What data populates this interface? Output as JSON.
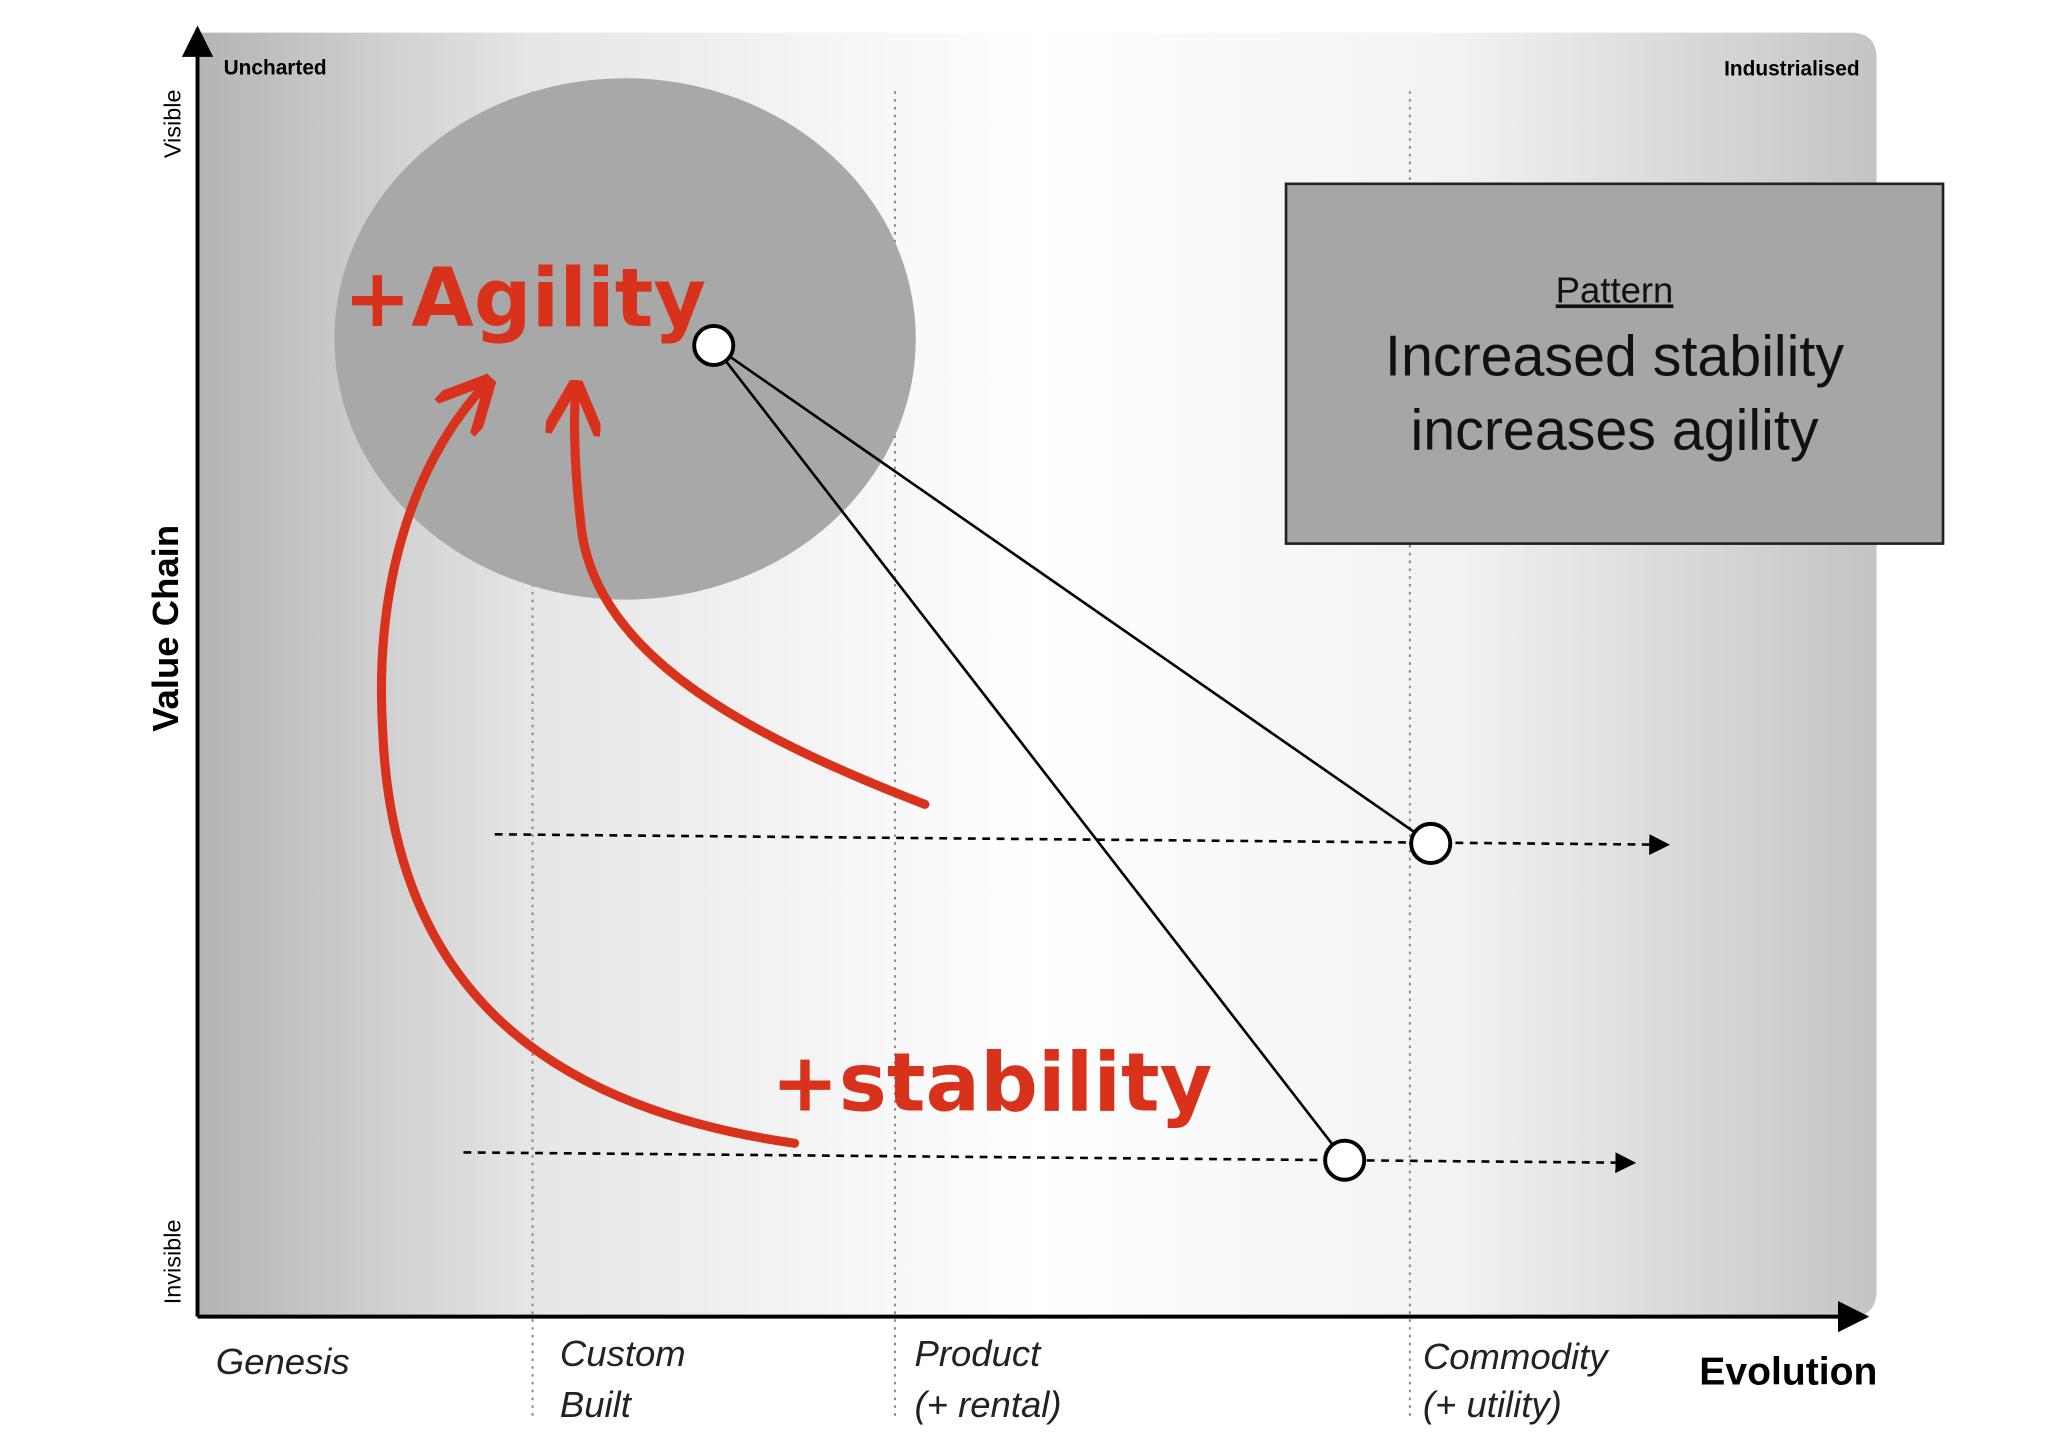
{
  "axes": {
    "y_label": "Value Chain",
    "y_top": "Visible",
    "y_bottom": "Invisible",
    "x_label": "Evolution",
    "top_left": "Uncharted",
    "top_right": "Industrialised"
  },
  "stages": [
    {
      "lines": [
        "Genesis"
      ]
    },
    {
      "lines": [
        "Custom",
        "Built"
      ]
    },
    {
      "lines": [
        "Product",
        "(+ rental)"
      ]
    },
    {
      "lines": [
        "Commodity",
        "(+ utility)"
      ]
    }
  ],
  "annotations": {
    "agility": "+Agility",
    "stability": "+stability"
  },
  "pattern": {
    "heading": "Pattern",
    "lines": [
      "Increased stability",
      "increases agility"
    ]
  }
}
